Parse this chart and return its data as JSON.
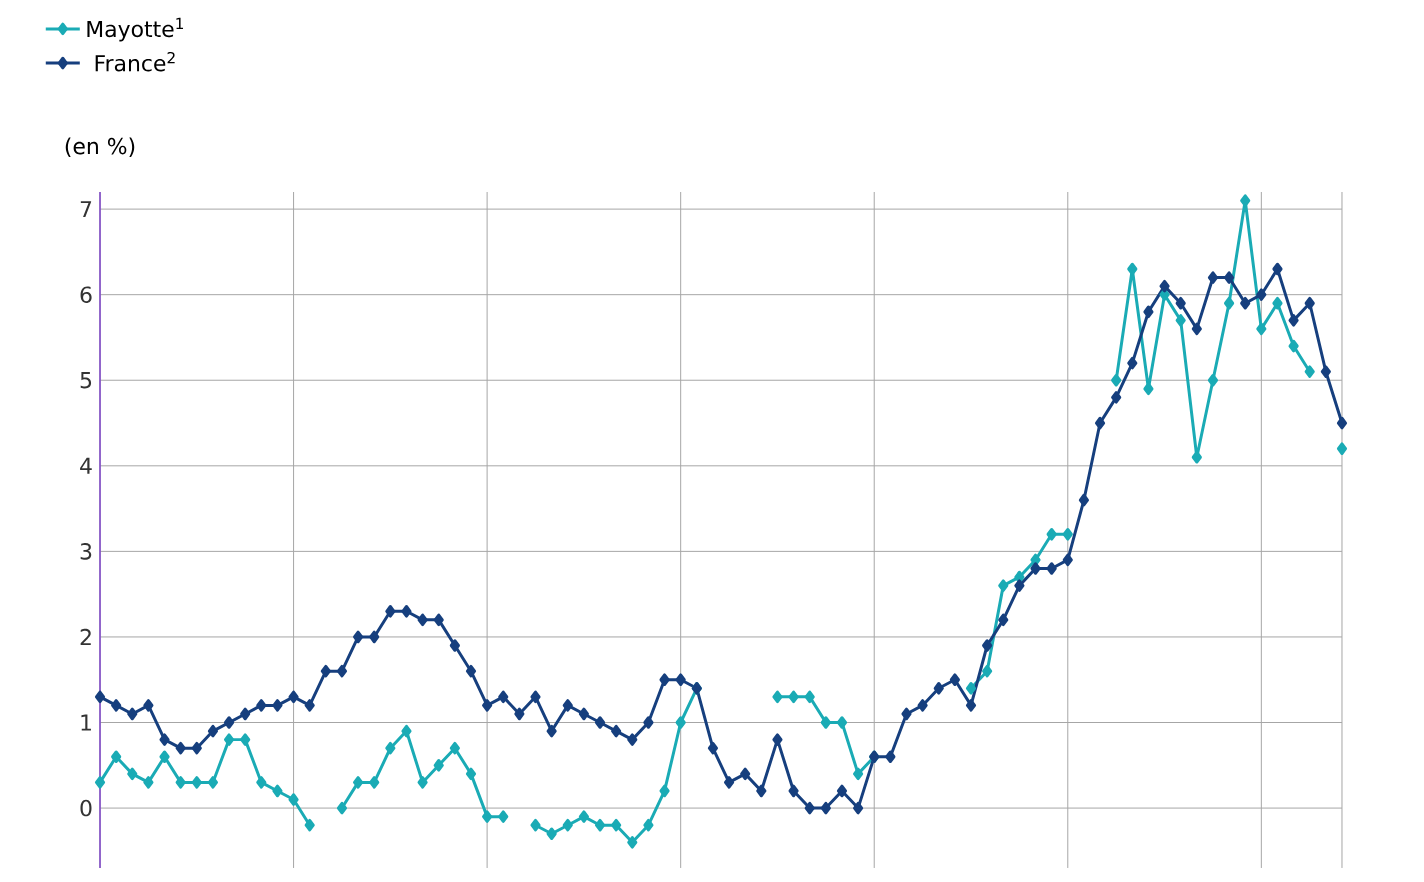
{
  "chart_data": {
    "type": "line",
    "ylabel": "(en  %)",
    "categories": [
      null,
      null,
      null,
      null,
      null,
      null,
      null,
      null,
      null,
      null,
      null,
      null,
      null,
      null,
      null,
      null,
      null,
      null,
      null,
      null,
      null,
      null,
      null,
      null,
      null,
      null,
      null,
      null,
      null,
      null,
      null,
      null,
      null,
      null,
      null,
      null,
      null,
      null,
      null,
      null,
      null,
      null,
      null,
      null,
      null,
      null,
      null,
      null,
      null,
      null,
      null,
      null,
      null,
      null,
      null,
      null,
      null,
      null,
      null,
      null,
      null,
      null,
      null,
      null,
      null,
      null,
      null,
      null,
      null,
      null,
      null,
      null,
      null,
      null,
      null,
      null,
      null,
      null
    ],
    "ylim": [
      -0.7,
      7.2
    ],
    "yticks": [
      0,
      1,
      2,
      3,
      4,
      5,
      6,
      7
    ],
    "tick_labels": "y",
    "grid": true,
    "legend": "top left",
    "marker": "diamond",
    "line_style": "solid",
    "series": [
      {
        "name": "Mayotte$^{1}$",
        "color": "#1aabb5",
        "values": [
          0.3,
          0.6,
          0.4,
          0.3,
          0.6,
          0.3,
          0.3,
          0.3,
          0.8,
          0.8,
          0.3,
          0.2,
          0.1,
          -0.2,
          null,
          0.0,
          0.3,
          0.3,
          0.7,
          0.9,
          0.3,
          0.5,
          0.7,
          0.4,
          -0.1,
          -0.1,
          null,
          -0.2,
          -0.3,
          -0.2,
          -0.1,
          -0.2,
          -0.2,
          -0.4,
          -0.2,
          0.2,
          1.0,
          1.4,
          null,
          null,
          null,
          null,
          1.3,
          1.3,
          1.3,
          1.0,
          1.0,
          0.4,
          0.6,
          null,
          null,
          null,
          null,
          null,
          1.4,
          1.6,
          2.6,
          2.7,
          2.9,
          3.2,
          3.2,
          null,
          null,
          5.0,
          6.3,
          4.9,
          6.0,
          5.7,
          4.1,
          5.0,
          5.9,
          7.1,
          5.6,
          5.9,
          5.4,
          5.1,
          null,
          4.2
        ]
      },
      {
        "name": "France$^{2}$",
        "color": "#163f7e",
        "values": [
          1.3,
          1.2,
          1.1,
          1.2,
          0.8,
          0.7,
          0.7,
          0.9,
          1.0,
          1.1,
          1.2,
          1.2,
          1.3,
          1.2,
          1.6,
          1.6,
          2.0,
          2.0,
          2.3,
          2.3,
          2.2,
          2.2,
          1.9,
          1.6,
          1.2,
          1.3,
          1.1,
          1.3,
          0.9,
          1.2,
          1.1,
          1.0,
          0.9,
          0.8,
          1.0,
          1.5,
          1.5,
          1.4,
          0.7,
          0.3,
          0.4,
          0.2,
          0.8,
          0.2,
          0.0,
          0.0,
          0.2,
          0.0,
          0.6,
          0.6,
          1.1,
          1.2,
          1.4,
          1.5,
          1.2,
          1.9,
          2.2,
          2.6,
          2.8,
          2.8,
          2.9,
          3.6,
          4.5,
          4.8,
          5.2,
          5.8,
          6.1,
          5.9,
          5.6,
          6.2,
          6.2,
          5.9,
          6.0,
          6.3,
          5.7,
          5.9,
          5.1,
          4.5
        ]
      }
    ]
  }
}
